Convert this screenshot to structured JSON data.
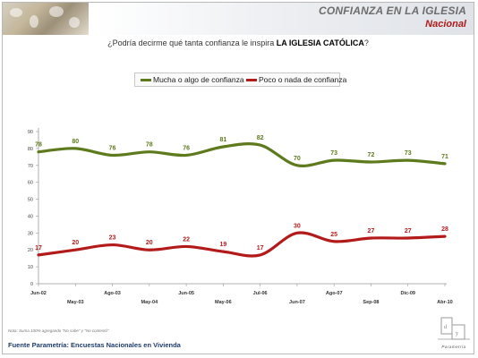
{
  "header": {
    "title": "CONFIANZA EN LA IGLESIA",
    "subtitle": "Nacional"
  },
  "question": {
    "prefix": "¿Podría decirme qué tanta confianza le inspira ",
    "emphasis": "LA IGLESIA CATÓLICA",
    "suffix": "?"
  },
  "footer": {
    "source": "Fuente Parametría: Encuestas Nacionales en Vivienda",
    "note": "Nota: Suma 100% agregando \"No sabe\" y \"No contestó\".",
    "logo_text": "Parametría"
  },
  "colors": {
    "series_green": "#5d7a1c",
    "series_red": "#b31b1b"
  },
  "chart_data": {
    "type": "line",
    "title": "",
    "xlabel": "",
    "ylabel": "",
    "ylim": [
      0,
      90
    ],
    "yticks": [
      0,
      10,
      20,
      30,
      40,
      50,
      60,
      70,
      80,
      90
    ],
    "grid": false,
    "legend_position": "top-center",
    "x": [
      "Jun-02",
      "May-03",
      "Ago-03",
      "May-04",
      "Jun-05",
      "May-06",
      "Jul-06",
      "Jun-07",
      "Ago-07",
      "Sep-08",
      "Dic-09",
      "Abr-10"
    ],
    "x_label_rows": [
      "top",
      "bottom",
      "top",
      "bottom",
      "top",
      "bottom",
      "top",
      "bottom",
      "top",
      "bottom",
      "top",
      "bottom"
    ],
    "series": [
      {
        "name": "Mucha o algo de confianza",
        "color": "#5d7a1c",
        "values": [
          78,
          80,
          76,
          78,
          76,
          81,
          82,
          70,
          73,
          72,
          73,
          71
        ]
      },
      {
        "name": "Poco o nada de confianza",
        "color": "#b31b1b",
        "values": [
          17,
          20,
          23,
          20,
          22,
          19,
          17,
          30,
          25,
          27,
          27,
          28
        ]
      }
    ]
  }
}
